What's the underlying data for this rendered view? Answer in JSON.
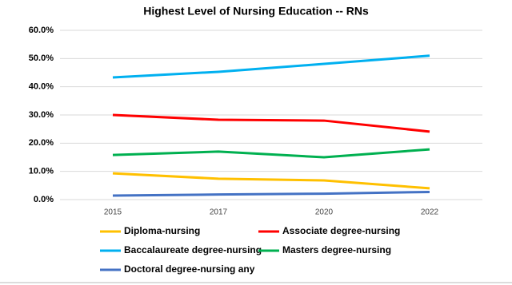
{
  "chart_data": {
    "type": "line",
    "title": "Highest Level of Nursing Education -- RNs",
    "categories": [
      "2015",
      "2017",
      "2020",
      "2022"
    ],
    "series": [
      {
        "name": "Diploma-nursing",
        "color": "#ffc000",
        "values": [
          9.3,
          7.4,
          6.8,
          4.0
        ]
      },
      {
        "name": "Associate degree-nursing",
        "color": "#ff0000",
        "values": [
          30.0,
          28.3,
          28.0,
          24.1
        ]
      },
      {
        "name": "Baccalaureate degree-nursing",
        "color": "#00b0f0",
        "values": [
          43.3,
          45.3,
          48.1,
          51.0
        ]
      },
      {
        "name": "Masters degree-nursing",
        "color": "#00b050",
        "values": [
          15.8,
          17.0,
          15.0,
          17.8
        ]
      },
      {
        "name": "Doctoral degree-nursing any",
        "color": "#4472c4",
        "values": [
          1.4,
          1.8,
          2.1,
          2.7
        ]
      }
    ],
    "ylim": [
      0,
      60
    ],
    "yticks": [
      {
        "value": 0,
        "label": "0.0%"
      },
      {
        "value": 10,
        "label": "10.0%"
      },
      {
        "value": 20,
        "label": "20.0%"
      },
      {
        "value": 30,
        "label": "30.0%"
      },
      {
        "value": 40,
        "label": "40.0%"
      },
      {
        "value": 50,
        "label": "50.0%"
      },
      {
        "value": 60,
        "label": "60.0%"
      }
    ],
    "grid": true,
    "legend": "bottom"
  }
}
